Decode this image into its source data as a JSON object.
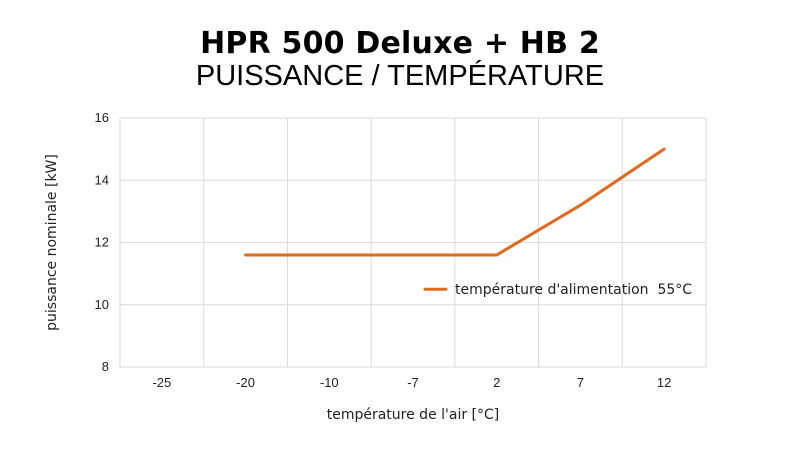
{
  "title": "HPR 500 Deluxe + HB 2",
  "subtitle": "PUISSANCE / TEMPÉRATURE",
  "colors": {
    "series": "#e0691c",
    "grid": "#d9d9d9",
    "text": "#222222"
  },
  "chart_data": {
    "type": "line",
    "title": "HPR 500 Deluxe + HB 2",
    "subtitle": "PUISSANCE / TEMPÉRATURE",
    "xlabel": "température de l'air [°C]",
    "ylabel": "puissance nominale [kW]",
    "x_categories": [
      "-25",
      "-20",
      "-10",
      "-7",
      "2",
      "7",
      "12"
    ],
    "ylim": [
      8,
      16
    ],
    "yticks": [
      "8",
      "10",
      "12",
      "14",
      "16"
    ],
    "grid": true,
    "legend_position": "right",
    "series": [
      {
        "name": "température d'alimentation  55°C",
        "x": [
          "-20",
          "-10",
          "-7",
          "2",
          "7",
          "12"
        ],
        "values": [
          11.6,
          11.6,
          11.6,
          11.6,
          13.2,
          15.0
        ]
      }
    ]
  }
}
